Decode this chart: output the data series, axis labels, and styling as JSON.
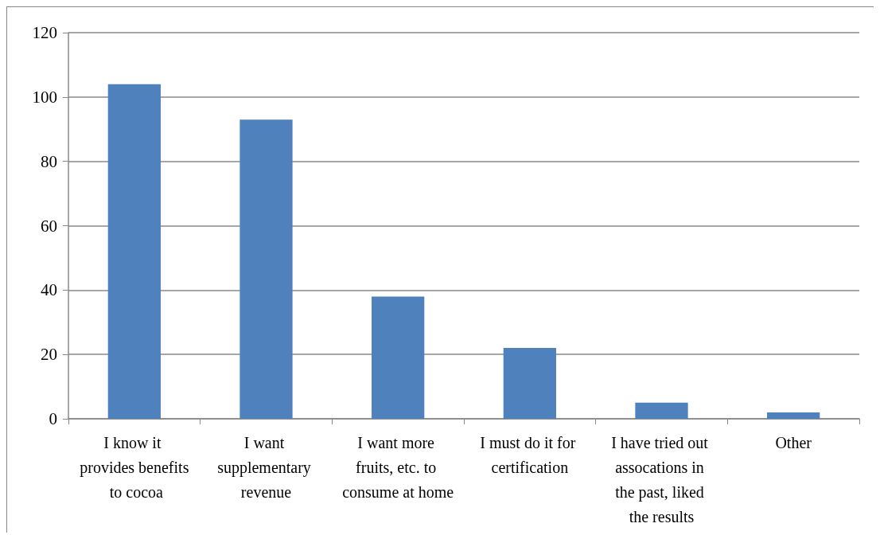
{
  "chart_data": {
    "type": "bar",
    "categories": [
      "I know it provides benefits to cocoa",
      "I want supplementary revenue",
      "I want more fruits, etc. to consume at home",
      "I must do it for certification",
      "I have tried out assocations in the past, liked the results",
      "Other"
    ],
    "values": [
      104,
      93,
      38,
      22,
      5,
      2
    ],
    "color": "#4f81bd",
    "ylim": [
      0,
      120
    ],
    "yticks": [
      0,
      20,
      40,
      60,
      80,
      100,
      120
    ],
    "grid": "y"
  }
}
